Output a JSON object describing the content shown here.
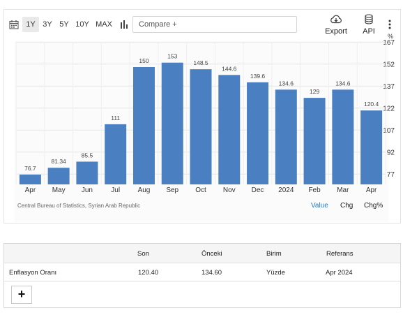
{
  "toolbar": {
    "ranges": [
      "1Y",
      "3Y",
      "5Y",
      "10Y",
      "MAX"
    ],
    "active_range": "1Y",
    "compare_placeholder": "Compare +",
    "export_label": "Export",
    "api_label": "API"
  },
  "chart_data": {
    "type": "bar",
    "categories": [
      "Apr",
      "May",
      "Jun",
      "Jul",
      "Aug",
      "Sep",
      "Oct",
      "Nov",
      "Dec",
      "2024",
      "Feb",
      "Mar",
      "Apr"
    ],
    "values": [
      76.7,
      81.34,
      85.5,
      111,
      150,
      153,
      148.5,
      144.6,
      139.6,
      134.6,
      129,
      134.6,
      120.4
    ],
    "value_labels": [
      "76.7",
      "81.34",
      "85.5",
      "111",
      "150",
      "153",
      "148.5",
      "144.6",
      "139.6",
      "134.6",
      "129",
      "134.6",
      "120.4"
    ],
    "y_ticks": [
      77,
      92,
      107,
      122,
      137,
      152,
      167
    ],
    "y_unit": "%",
    "ylim": [
      70,
      170
    ],
    "grid": true,
    "bar_color": "#4a7fc1"
  },
  "source": "Central Bureau of Statistics, Syrian Arab Republic",
  "view_tabs": [
    "Value",
    "Chg",
    "Chg%"
  ],
  "active_tab": "Value",
  "table": {
    "headers": [
      "",
      "Son",
      "Önceki",
      "Birim",
      "Referans"
    ],
    "row": [
      "Enflasyon Oranı",
      "120.40",
      "134.60",
      "Yüzde",
      "Apr 2024"
    ],
    "add_label": "+"
  }
}
